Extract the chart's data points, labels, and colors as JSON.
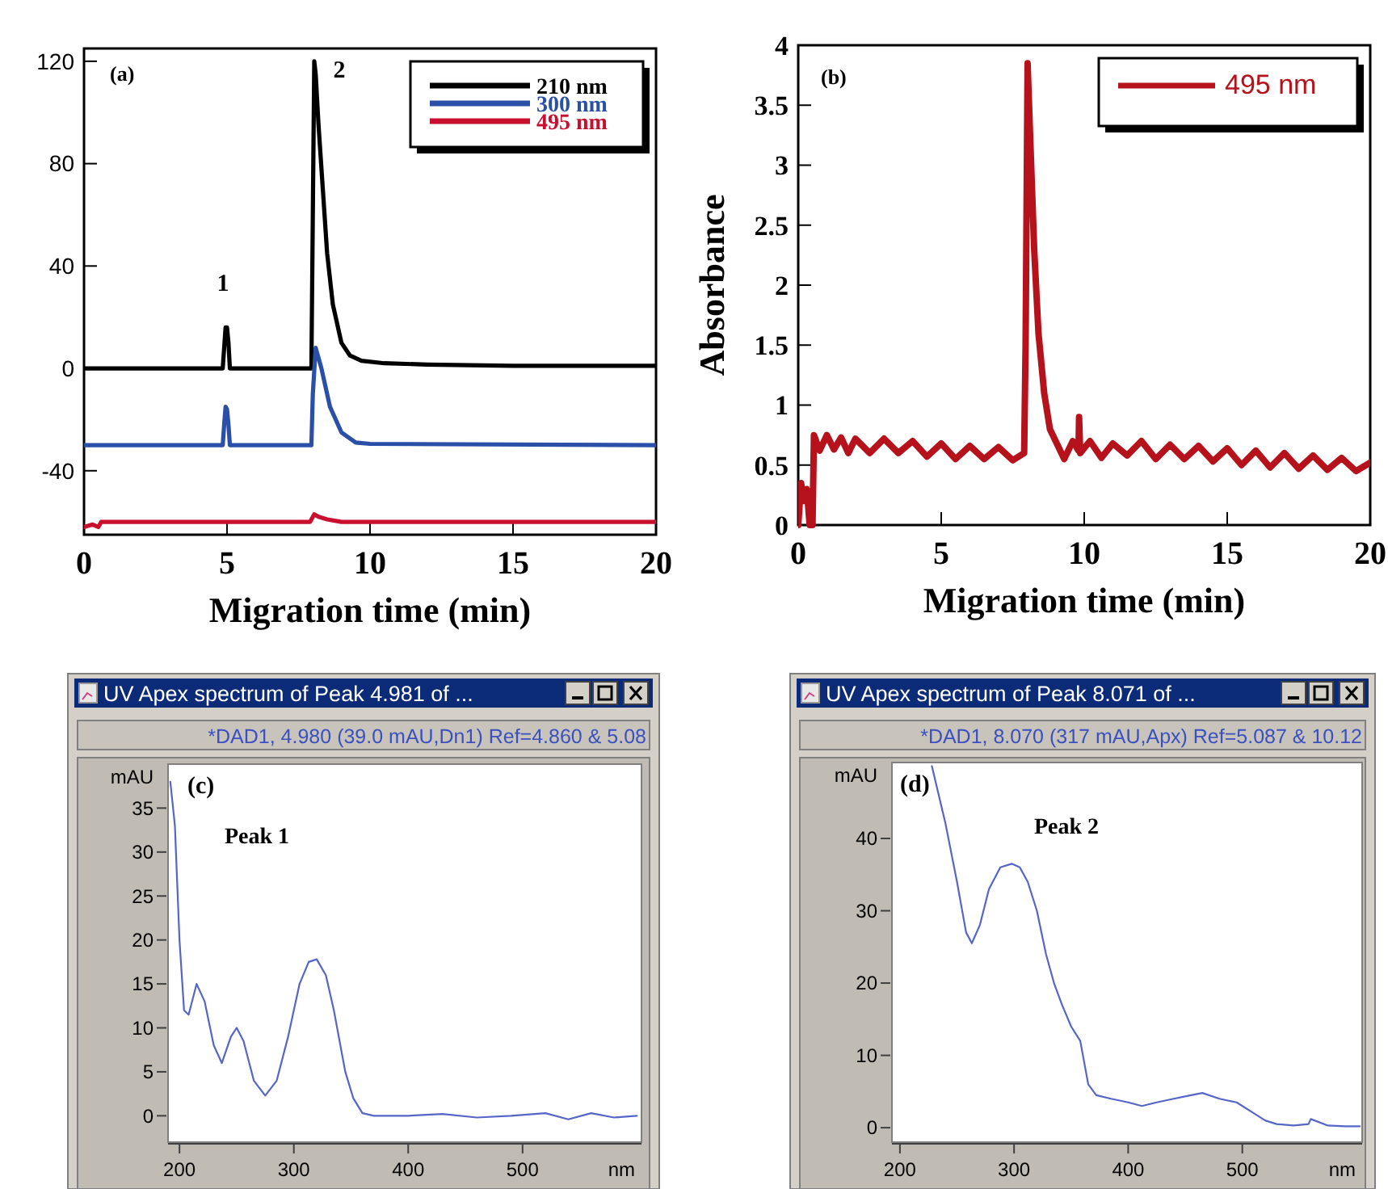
{
  "chart_data": [
    {
      "type": "line",
      "xlabel": "Migration time (min)",
      "xlim": [
        0,
        20
      ],
      "xticks": [
        0,
        5,
        10,
        15,
        20
      ],
      "ylim": [
        -65,
        125
      ],
      "yticks": [
        -40,
        0,
        40,
        80,
        120
      ],
      "legend": "top right",
      "annotations": [
        "(a)",
        "1",
        "2"
      ],
      "series": [
        {
          "name": "210 nm",
          "color": "#000000",
          "x": [
            0,
            4.85,
            4.9,
            4.95,
            5.0,
            5.05,
            5.1,
            5.15,
            7.95,
            8.0,
            8.05,
            8.1,
            8.2,
            8.35,
            8.5,
            8.7,
            9.0,
            9.3,
            9.7,
            10.5,
            12,
            15,
            20
          ],
          "values": [
            0,
            0,
            8,
            16,
            16,
            10,
            0,
            0,
            0,
            60,
            120,
            115,
            95,
            70,
            45,
            25,
            10,
            5,
            3,
            2,
            1.5,
            1,
            1
          ]
        },
        {
          "name": "300 nm",
          "color": "#2a4fa8",
          "x": [
            0,
            4.85,
            4.9,
            4.95,
            5.0,
            5.05,
            5.1,
            7.95,
            8.0,
            8.1,
            8.3,
            8.6,
            9.0,
            9.5,
            10,
            20
          ],
          "values": [
            -30,
            -30,
            -22,
            -15,
            -16,
            -22,
            -30,
            -30,
            -10,
            8,
            0,
            -15,
            -25,
            -29,
            -29.5,
            -30
          ]
        },
        {
          "name": "495 nm",
          "color": "#c8102e",
          "x": [
            0,
            0.3,
            0.5,
            0.6,
            7.9,
            8.05,
            8.2,
            8.5,
            9,
            10,
            20
          ],
          "values": [
            -62,
            -61,
            -62,
            -60,
            -60,
            -57,
            -58,
            -59,
            -60,
            -60,
            -60
          ]
        }
      ]
    },
    {
      "type": "line",
      "xlabel": "Migration time (min)",
      "ylabel": "Absorbance",
      "xlim": [
        0,
        20
      ],
      "xticks": [
        0,
        5,
        10,
        15,
        20
      ],
      "ylim": [
        0,
        4
      ],
      "yticks": [
        0,
        0.5,
        1,
        1.5,
        2,
        2.5,
        3,
        3.5,
        4
      ],
      "legend": "top right",
      "annotations": [
        "(b)"
      ],
      "series": [
        {
          "name": "495 nm",
          "color": "#b5121b",
          "x": [
            0,
            0.1,
            0.2,
            0.3,
            0.4,
            0.5,
            0.55,
            0.75,
            1,
            1.25,
            1.5,
            1.75,
            2,
            2.5,
            3,
            3.5,
            4,
            4.5,
            5,
            5.5,
            6,
            6.5,
            7,
            7.5,
            7.9,
            7.95,
            8.02,
            8.1,
            8.25,
            8.4,
            8.6,
            8.8,
            9.0,
            9.3,
            9.6,
            9.8,
            9.82,
            9.86,
            10.2,
            10.6,
            11,
            11.5,
            12,
            12.5,
            13,
            13.5,
            14,
            14.5,
            15,
            15.5,
            16,
            16.5,
            17,
            17.5,
            18,
            18.5,
            19,
            19.5,
            20
          ],
          "values": [
            0,
            0.35,
            0.2,
            0.3,
            0,
            0,
            0.75,
            0.62,
            0.75,
            0.63,
            0.73,
            0.6,
            0.72,
            0.6,
            0.72,
            0.6,
            0.7,
            0.57,
            0.68,
            0.55,
            0.66,
            0.55,
            0.65,
            0.54,
            0.6,
            1.5,
            3.85,
            3.3,
            2.3,
            1.6,
            1.1,
            0.8,
            0.7,
            0.55,
            0.7,
            0.62,
            0.9,
            0.6,
            0.7,
            0.56,
            0.68,
            0.58,
            0.7,
            0.55,
            0.67,
            0.55,
            0.66,
            0.53,
            0.64,
            0.5,
            0.62,
            0.48,
            0.6,
            0.47,
            0.58,
            0.46,
            0.56,
            0.45,
            0.52
          ]
        }
      ]
    },
    {
      "type": "line",
      "title": "UV Apex spectrum of Peak 4.981 of ...",
      "subtitle": "*DAD1, 4.980 (39.0 mAU,Dn1) Ref=4.860 & 5.08",
      "xlabel": "nm",
      "ylabel": "mAU",
      "xlim": [
        190,
        604
      ],
      "xticks": [
        200,
        300,
        400,
        500
      ],
      "ylim": [
        -3,
        40
      ],
      "yticks": [
        0,
        5,
        10,
        15,
        20,
        25,
        30,
        35
      ],
      "annotations": [
        "(c)",
        "Peak 1"
      ],
      "series": [
        {
          "color": "#5565c8",
          "x": [
            192,
            196,
            200,
            204,
            208,
            215,
            222,
            230,
            237,
            245,
            250,
            256,
            265,
            275,
            285,
            295,
            305,
            313,
            320,
            328,
            335,
            345,
            352,
            360,
            370,
            400,
            430,
            460,
            490,
            520,
            540,
            560,
            580,
            600
          ],
          "values": [
            38,
            33,
            20,
            12,
            11.5,
            15,
            13,
            8,
            6,
            9,
            10,
            8.5,
            4,
            2.3,
            4,
            9,
            15,
            17.5,
            17.8,
            16,
            12,
            5,
            2,
            0.3,
            0,
            0,
            0.2,
            -0.2,
            0,
            0.3,
            -0.4,
            0.3,
            -0.2,
            0
          ]
        }
      ]
    },
    {
      "type": "line",
      "title": "UV Apex spectrum of Peak 8.071 of ...",
      "subtitle": "*DAD1, 8.070 (317 mAU,Apx) Ref=5.087 & 10.12",
      "xlabel": "nm",
      "ylabel": "mAU",
      "xlim": [
        193,
        605
      ],
      "xticks": [
        200,
        300,
        400,
        500
      ],
      "ylim": [
        -2,
        50.5
      ],
      "yticks": [
        0,
        10,
        20,
        30,
        40
      ],
      "annotations": [
        "(d)",
        "Peak 2"
      ],
      "series": [
        {
          "color": "#5565c8",
          "x": [
            228,
            240,
            250,
            258,
            263,
            270,
            278,
            288,
            298,
            305,
            312,
            320,
            328,
            335,
            342,
            350,
            358,
            365,
            372,
            385,
            400,
            412,
            425,
            440,
            455,
            465,
            480,
            495,
            510,
            520,
            530,
            545,
            558,
            560,
            575,
            590,
            603
          ],
          "values": [
            50,
            42,
            34,
            27,
            25.5,
            28,
            33,
            36,
            36.5,
            36,
            34,
            30,
            24,
            20,
            17,
            14,
            12,
            6,
            4.5,
            4,
            3.5,
            3,
            3.5,
            4,
            4.5,
            4.8,
            4,
            3.5,
            2,
            1,
            0.5,
            0.3,
            0.5,
            1.2,
            0.3,
            0.2,
            0.2
          ]
        }
      ]
    }
  ]
}
